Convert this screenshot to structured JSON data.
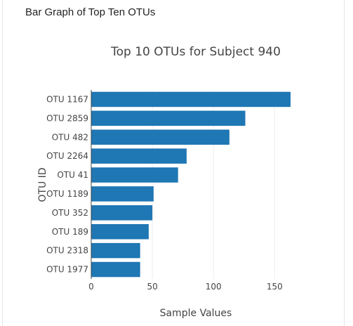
{
  "panel": {
    "heading": "Bar Graph of Top Ten OTUs"
  },
  "colors": {
    "bar": "#1f77b4",
    "grid": "#eeeeee",
    "text": "#444444",
    "title": "#444444"
  },
  "chart_data": {
    "type": "bar",
    "orientation": "horizontal",
    "title": "Top 10 OTUs for Subject 940",
    "xlabel": "Sample Values",
    "ylabel": "OTU ID",
    "categories": [
      "OTU 1167",
      "OTU 2859",
      "OTU 482",
      "OTU 2264",
      "OTU 41",
      "OTU 1189",
      "OTU 352",
      "OTU 189",
      "OTU 2318",
      "OTU 1977"
    ],
    "values": [
      163,
      126,
      113,
      78,
      71,
      51,
      50,
      47,
      40,
      40
    ],
    "xlim": [
      0,
      163
    ],
    "xticks": [
      0,
      50,
      100,
      150
    ],
    "xtick_labels": [
      "0",
      "50",
      "100",
      "150"
    ],
    "grid": true
  }
}
